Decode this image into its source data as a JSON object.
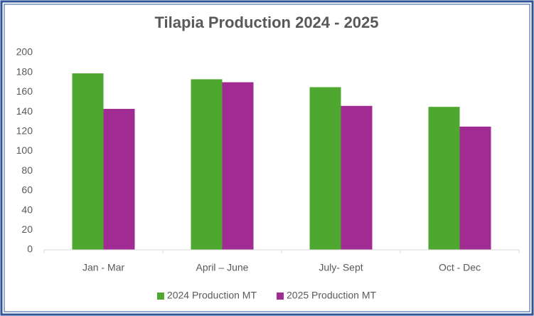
{
  "chart_data": {
    "type": "bar",
    "title": "Tilapia Production 2024 - 2025",
    "categories": [
      "Jan - Mar",
      "April – June",
      "July- Sept",
      "Oct - Dec"
    ],
    "series": [
      {
        "name": "2024 Production MT",
        "color": "#4ea72e",
        "values": [
          179,
          173,
          165,
          145
        ]
      },
      {
        "name": "2025 Production MT",
        "color": "#a02b93",
        "values": [
          143,
          170,
          146,
          125
        ]
      }
    ],
    "ylim": [
      0,
      200
    ],
    "yticks": [
      0,
      20,
      40,
      60,
      80,
      100,
      120,
      140,
      160,
      180,
      200
    ],
    "grid": false,
    "legend": "bottom"
  }
}
